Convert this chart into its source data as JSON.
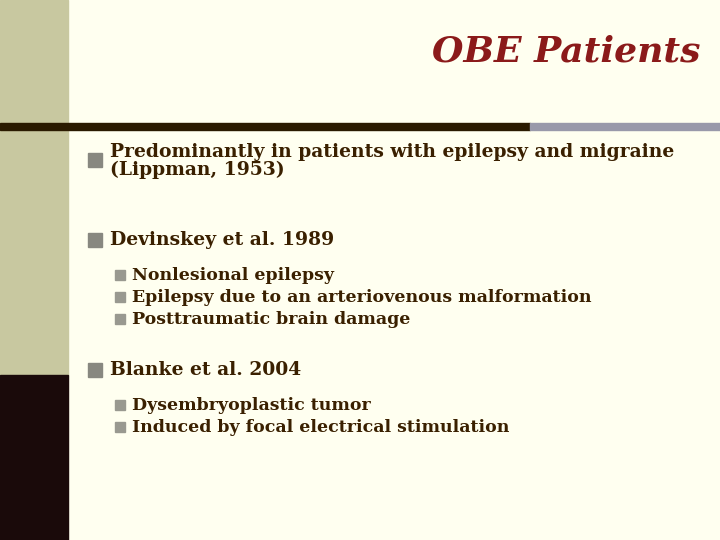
{
  "title": "OBE Patients",
  "title_color": "#8B1A1A",
  "title_style": "italic",
  "title_fontsize": 26,
  "bg_color": "#FFFFF0",
  "left_bar_color_top": "#C8C8A0",
  "left_bar_color_bottom": "#1A0A0A",
  "separator_left_color": "#2A1A00",
  "separator_right_color": "#9999AA",
  "bullet_color_main": "#888880",
  "bullet_color_sub": "#999990",
  "text_color": "#3A2000",
  "bullet1_line1": "Predominantly in patients with epilepsy and migraine",
  "bullet1_line2": "(Lippman, 1953)",
  "bullet2_header": "Devinskey et al. 1989",
  "bullet2_sub": [
    "Nonlesional epilepsy",
    "Epilepsy due to an arteriovenous malformation",
    "Posttraumatic brain damage"
  ],
  "bullet3_header": "Blanke et al. 2004",
  "bullet3_sub": [
    "Dysembryoplastic tumor",
    "Induced by focal electrical stimulation"
  ],
  "main_fontsize": 13.5,
  "sub_fontsize": 12.5
}
